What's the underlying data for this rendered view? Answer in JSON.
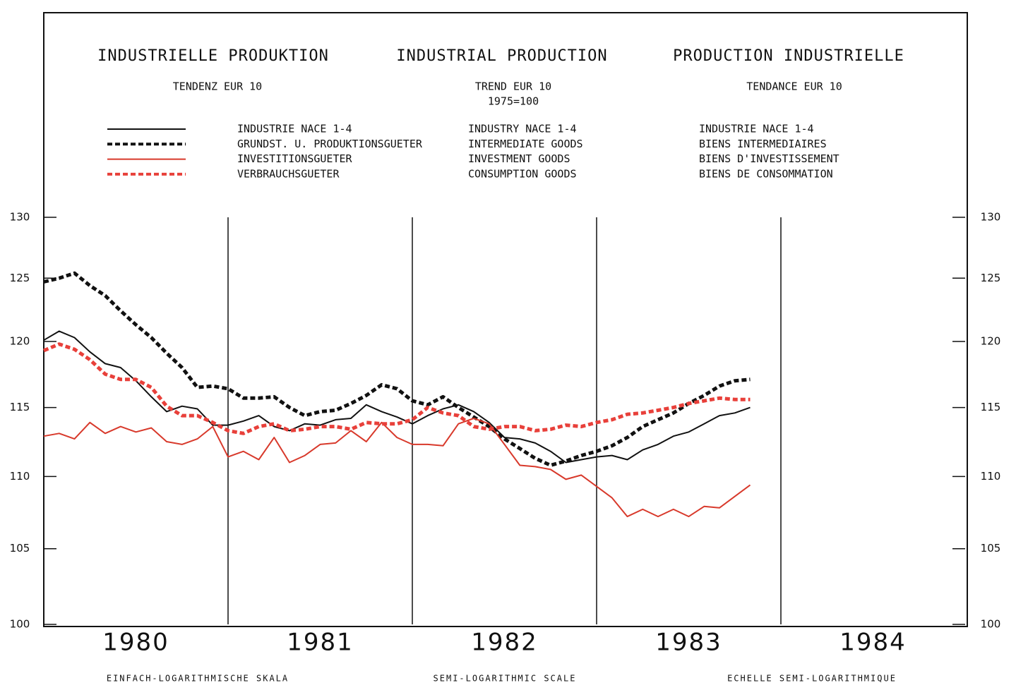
{
  "chart_data": {
    "type": "line",
    "titles": [
      "INDUSTRIELLE PRODUKTION",
      "INDUSTRIAL PRODUCTION",
      "PRODUCTION INDUSTRIELLE"
    ],
    "subtitles": [
      "TENDENZ  EUR 10",
      "TREND EUR 10",
      "TENDANCE EUR 10"
    ],
    "base": "1975=100",
    "footers": [
      "EINFACH-LOGARITHMISCHE SKALA",
      "SEMI-LOGARITHMIC SCALE",
      "ECHELLE SEMI-LOGARITHMIQUE"
    ],
    "log_y": true,
    "ylim": [
      100,
      130
    ],
    "yticks": [
      100,
      105,
      110,
      115,
      120,
      125,
      130
    ],
    "xlim": [
      0,
      60
    ],
    "xticks": [
      {
        "value": 6,
        "label": "1980"
      },
      {
        "value": 18,
        "label": "1981"
      },
      {
        "value": 30,
        "label": "1982"
      },
      {
        "value": 42,
        "label": "1983"
      },
      {
        "value": 54,
        "label": "1984"
      }
    ],
    "vlines": [
      12,
      24,
      36,
      48
    ],
    "x": [
      0,
      1,
      2,
      3,
      4,
      5,
      6,
      7,
      8,
      9,
      10,
      11,
      12,
      13,
      14,
      15,
      16,
      17,
      18,
      19,
      20,
      21,
      22,
      23,
      24,
      25,
      26,
      27,
      28,
      29,
      30,
      31,
      32,
      33,
      34,
      35,
      36,
      37,
      38,
      39,
      40,
      41,
      42,
      43,
      44,
      45,
      46
    ],
    "series": [
      {
        "names": [
          "INDUSTRIE NACE 1-4",
          "INDUSTRY NACE 1-4",
          "INDUSTRIE NACE 1-4"
        ],
        "color": "#111111",
        "dashed": false,
        "values": [
          120.1,
          120.8,
          120.3,
          119.2,
          118.3,
          118.0,
          117.0,
          115.8,
          114.7,
          115.1,
          114.9,
          113.7,
          113.7,
          114.0,
          114.4,
          113.6,
          113.3,
          113.8,
          113.7,
          114.1,
          114.2,
          115.2,
          114.7,
          114.3,
          113.8,
          114.4,
          114.9,
          115.2,
          114.7,
          113.9,
          112.8,
          112.7,
          112.4,
          111.8,
          111.0,
          111.2,
          111.4,
          111.5,
          111.2,
          111.9,
          112.3,
          112.9,
          113.2,
          113.8,
          114.4,
          114.6,
          115.0
        ]
      },
      {
        "names": [
          "GRUNDST. U. PRODUKTIONSGUETER",
          "INTERMEDIATE GOODS",
          "BIENS INTERMEDIAIRES"
        ],
        "color": "#111111",
        "dashed": true,
        "values": [
          124.7,
          125.0,
          125.4,
          124.4,
          123.6,
          122.4,
          121.3,
          120.3,
          119.1,
          118.0,
          116.5,
          116.6,
          116.4,
          115.7,
          115.7,
          115.8,
          115.0,
          114.4,
          114.7,
          114.8,
          115.3,
          115.9,
          116.7,
          116.4,
          115.5,
          115.2,
          115.8,
          115.0,
          114.3,
          113.6,
          112.7,
          112.0,
          111.3,
          110.8,
          111.1,
          111.5,
          111.8,
          112.2,
          112.8,
          113.6,
          114.1,
          114.6,
          115.3,
          115.9,
          116.6,
          117.0,
          117.1
        ]
      },
      {
        "names": [
          "INVESTITIONSGUETER",
          "INVESTMENT GOODS",
          "BIENS D'INVESTISSEMENT"
        ],
        "color": "#d8392b",
        "dashed": false,
        "values": [
          112.9,
          113.1,
          112.7,
          113.9,
          113.1,
          113.6,
          113.2,
          113.5,
          112.5,
          112.3,
          112.7,
          113.6,
          111.4,
          111.8,
          111.2,
          112.8,
          111.0,
          111.5,
          112.3,
          112.4,
          113.3,
          112.5,
          113.9,
          112.8,
          112.3,
          112.3,
          112.2,
          113.8,
          114.2,
          113.8,
          112.3,
          110.8,
          110.7,
          110.5,
          109.8,
          110.1,
          109.3,
          108.5,
          107.2,
          107.7,
          107.2,
          107.7,
          107.2,
          107.9,
          107.8,
          108.6,
          109.4
        ]
      },
      {
        "names": [
          "VERBRAUCHSGUETER",
          "CONSUMPTION GOODS",
          "BIENS DE CONSOMMATION"
        ],
        "color": "#e8403a",
        "dashed": true,
        "values": [
          119.3,
          119.8,
          119.4,
          118.6,
          117.5,
          117.1,
          117.1,
          116.5,
          115.1,
          114.4,
          114.4,
          113.9,
          113.3,
          113.1,
          113.6,
          113.8,
          113.3,
          113.4,
          113.6,
          113.6,
          113.4,
          113.9,
          113.8,
          113.8,
          114.1,
          115.0,
          114.6,
          114.4,
          113.6,
          113.4,
          113.6,
          113.6,
          113.3,
          113.4,
          113.7,
          113.6,
          113.9,
          114.1,
          114.5,
          114.6,
          114.8,
          115.0,
          115.3,
          115.5,
          115.7,
          115.6,
          115.6
        ]
      }
    ]
  }
}
